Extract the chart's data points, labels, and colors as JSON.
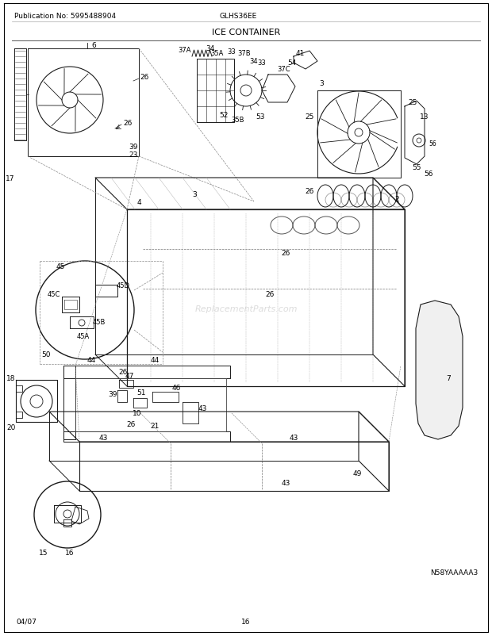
{
  "pub_no": "Publication No: 5995488904",
  "model": "GLHS36EE",
  "title": "ICE CONTAINER",
  "date": "04/07",
  "page": "16",
  "diagram_id": "N58YAAAAA3",
  "bg_color": "#ffffff",
  "text_color": "#000000",
  "line_color": "#1a1a1a",
  "fig_width": 6.2,
  "fig_height": 8.03,
  "dpi": 100
}
